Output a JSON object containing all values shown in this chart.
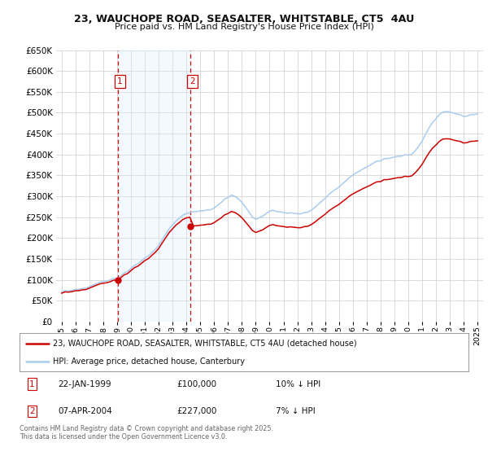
{
  "title1": "23, WAUCHOPE ROAD, SEASALTER, WHITSTABLE, CT5  4AU",
  "title2": "Price paid vs. HM Land Registry's House Price Index (HPI)",
  "background_color": "#ffffff",
  "grid_color": "#cccccc",
  "sale1_year": 1999.05,
  "sale1_price": 100000,
  "sale2_year": 2004.27,
  "sale2_price": 227000,
  "legend_line1": "23, WAUCHOPE ROAD, SEASALTER, WHITSTABLE, CT5 4AU (detached house)",
  "legend_line2": "HPI: Average price, detached house, Canterbury",
  "sale_line_color": "#cc0000",
  "hpi_line_color": "#aaccee",
  "vline_color": "#cc0000",
  "shade_color": "#ddeeff",
  "ylim_max": 650000,
  "ylim_min": 0,
  "xlim_min": 1994.6,
  "xlim_max": 2025.4
}
